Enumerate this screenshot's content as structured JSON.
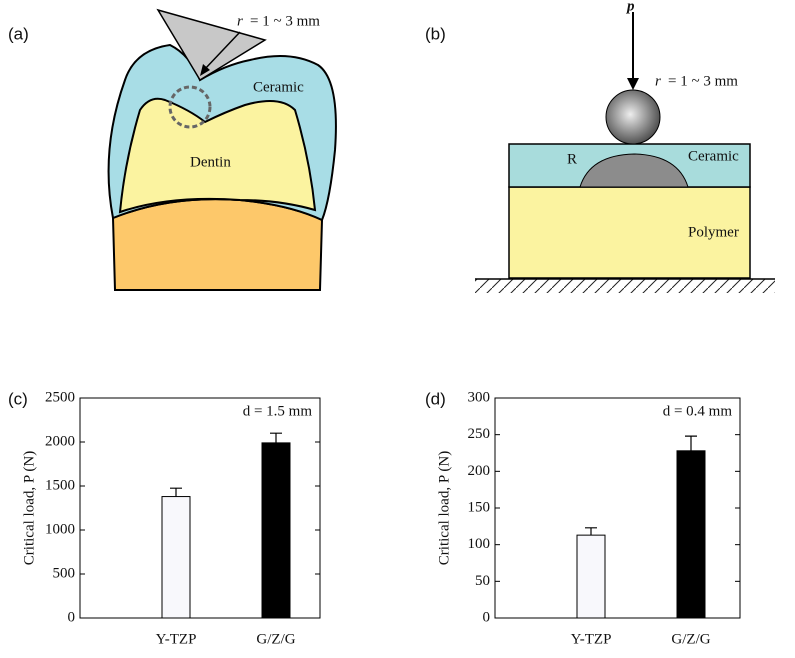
{
  "diagram_a": {
    "label": "(a)",
    "radius_var": "r",
    "radius": "= 1 ~ 3 mm",
    "ceramic": "Ceramic",
    "dentin": "Dentin"
  },
  "diagram_b": {
    "label": "(b)",
    "load": "p",
    "radius_var": "r",
    "radius": "= 1 ~ 3 mm",
    "ceramic": "Ceramic",
    "crack": "R",
    "polymer": "Polymer"
  },
  "chart_data": [
    {
      "type": "bar",
      "panel_label": "(c)",
      "annotation": "d = 1.5 mm",
      "y_label": "Critical load, P (N)",
      "categories": [
        "Y-TZP",
        "G/Z/G"
      ],
      "values": [
        1380,
        1990
      ],
      "errors": [
        95,
        110
      ],
      "colors": [
        "#f8f8fc",
        "#000000"
      ],
      "ylim": [
        0,
        2500
      ],
      "yticks": [
        0,
        500,
        1000,
        1500,
        2000,
        2500
      ]
    },
    {
      "type": "bar",
      "panel_label": "(d)",
      "annotation": "d = 0.4 mm",
      "y_label": "Critical load, P (N)",
      "categories": [
        "Y-TZP",
        "G/Z/G"
      ],
      "values": [
        113,
        228
      ],
      "errors": [
        10,
        20
      ],
      "colors": [
        "#f8f8fc",
        "#000000"
      ],
      "ylim": [
        0,
        300
      ],
      "yticks": [
        0,
        50,
        100,
        150,
        200,
        250,
        300
      ]
    }
  ]
}
